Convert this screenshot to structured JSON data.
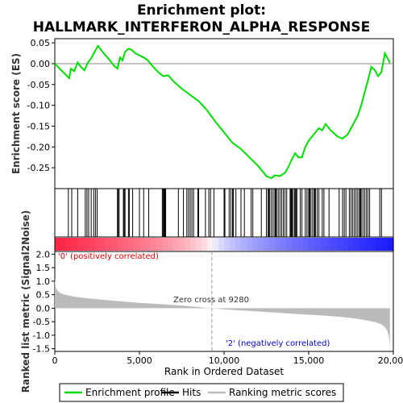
{
  "title_line1": "Enrichment plot:",
  "title_line2": "HALLMARK_INTERFERON_ALPHA_RESPONSE",
  "chart_data": {
    "type": "line",
    "top_panel": {
      "ylabel": "Enrichment score (ES)",
      "ylim": [
        -0.3,
        0.06
      ],
      "yticks": [
        0.05,
        0.0,
        -0.05,
        -0.1,
        -0.15,
        -0.2,
        -0.25
      ],
      "ytick_labels": [
        "0.05",
        "0.00",
        "-0.05",
        "-0.10",
        "-0.15",
        "-0.20",
        "-0.25"
      ],
      "series_name": "Enrichment profile",
      "color": "#00dd00",
      "x": [
        0,
        850,
        950,
        1150,
        1350,
        1550,
        1750,
        1950,
        2150,
        2350,
        2550,
        2750,
        3000,
        3250,
        3500,
        3700,
        3850,
        4000,
        4150,
        4350,
        4550,
        4750,
        5000,
        5250,
        5500,
        5750,
        6100,
        6400,
        6700,
        7000,
        7500,
        8000,
        8500,
        9000,
        9500,
        10000,
        10500,
        11000,
        11500,
        12000,
        12500,
        12800,
        13000,
        13300,
        13600,
        13800,
        14000,
        14200,
        14400,
        14600,
        14800,
        15000,
        15200,
        15400,
        15600,
        15800,
        16000,
        16300,
        16700,
        17000,
        17300,
        17500,
        17700,
        17900,
        18100,
        18300,
        18500,
        18700,
        18900,
        19100,
        19300,
        19500,
        19800
      ],
      "y": [
        0.0,
        -0.035,
        -0.012,
        -0.018,
        0.003,
        -0.008,
        -0.016,
        0.003,
        0.013,
        0.028,
        0.043,
        0.032,
        0.02,
        0.008,
        -0.005,
        -0.012,
        0.015,
        0.008,
        0.028,
        0.036,
        0.033,
        0.025,
        0.02,
        0.015,
        0.008,
        -0.005,
        -0.02,
        -0.03,
        -0.028,
        -0.042,
        -0.06,
        -0.075,
        -0.09,
        -0.112,
        -0.14,
        -0.165,
        -0.19,
        -0.205,
        -0.225,
        -0.245,
        -0.27,
        -0.275,
        -0.268,
        -0.27,
        -0.262,
        -0.248,
        -0.23,
        -0.215,
        -0.225,
        -0.225,
        -0.2,
        -0.185,
        -0.175,
        -0.165,
        -0.155,
        -0.16,
        -0.145,
        -0.16,
        -0.175,
        -0.18,
        -0.17,
        -0.155,
        -0.14,
        -0.125,
        -0.1,
        -0.07,
        -0.04,
        -0.008,
        -0.015,
        -0.03,
        -0.02,
        0.025,
        0.002
      ]
    },
    "hits": [
      800,
      1000,
      1350,
      1800,
      1900,
      2000,
      2150,
      2300,
      2400,
      2500,
      3700,
      3750,
      3800,
      4050,
      4100,
      4150,
      4350,
      4400,
      4600,
      5000,
      5250,
      5550,
      6350,
      6400,
      6450,
      6500,
      6550,
      7300,
      7600,
      7800,
      7900,
      8000,
      8100,
      8200,
      8450,
      8500,
      8900,
      9100,
      9200,
      9400,
      10000,
      10050,
      10300,
      10400,
      10500,
      10550,
      10700,
      11000,
      11200,
      11600,
      11700,
      12200,
      12500,
      12600,
      12650,
      12700,
      12800,
      12900,
      13000,
      13050,
      13100,
      13200,
      13300,
      13400,
      13500,
      13600,
      13700,
      13900,
      13950,
      14000,
      14050,
      14150,
      14200,
      14250,
      14300,
      14500,
      14600,
      14800,
      14900,
      15000,
      15050,
      15100,
      15200,
      15300,
      15350,
      15400,
      15500,
      15600,
      15800,
      15900,
      16200,
      16800,
      17000,
      17100,
      17200,
      17400,
      17500,
      17600,
      17700,
      17800,
      17900,
      18000,
      18050,
      18100,
      18200,
      18300,
      18400,
      18500,
      18600,
      19200,
      19300
    ],
    "bottom_panel": {
      "ylabel": "Ranked list metric (Signal2Noise)",
      "ylim": [
        -1.6,
        2.1
      ],
      "yticks": [
        2.0,
        1.5,
        1.0,
        0.5,
        0.0,
        -0.5,
        -1.0,
        -1.5
      ],
      "ytick_labels": [
        "2.0",
        "1.5",
        "1.0",
        "0.5",
        "0.0",
        "-0.5",
        "-1.0",
        "-1.5"
      ],
      "metric_x": [
        0,
        50,
        150,
        300,
        500,
        800,
        1200,
        2000,
        3000,
        4000,
        5000,
        6000,
        7000,
        8000,
        9280,
        10000,
        11000,
        12000,
        13000,
        14000,
        15000,
        16000,
        17000,
        17800,
        18500,
        19000,
        19300,
        19500,
        19650,
        19750,
        19800
      ],
      "metric_y": [
        1.1,
        0.8,
        0.65,
        0.57,
        0.52,
        0.47,
        0.42,
        0.36,
        0.3,
        0.25,
        0.2,
        0.16,
        0.12,
        0.07,
        0.0,
        -0.04,
        -0.08,
        -0.12,
        -0.16,
        -0.2,
        -0.24,
        -0.28,
        -0.33,
        -0.39,
        -0.46,
        -0.53,
        -0.6,
        -0.7,
        -0.85,
        -1.1,
        -1.45
      ],
      "fill_color": "#bbbbbb",
      "zero_cross_label": "Zero cross at 9280",
      "zero_cross": 9280,
      "pos_label": "'0' (positively correlated)",
      "neg_label": "'2' (negatively correlated)",
      "pos_color": "#dd0000",
      "neg_color": "#0000cc"
    },
    "xlabel": "Rank in Ordered Dataset",
    "xlim": [
      0,
      20000
    ],
    "xticks": [
      0,
      5000,
      10000,
      15000,
      20000
    ],
    "xtick_labels": [
      "0",
      "5,000",
      "10,000",
      "15,000",
      "20,000"
    ],
    "legend": [
      {
        "label": "Enrichment profile",
        "color": "#00dd00",
        "kind": "line"
      },
      {
        "label": "Hits",
        "color": "#000000",
        "kind": "line"
      },
      {
        "label": "Ranking metric scores",
        "color": "#bbbbbb",
        "kind": "line"
      }
    ]
  }
}
